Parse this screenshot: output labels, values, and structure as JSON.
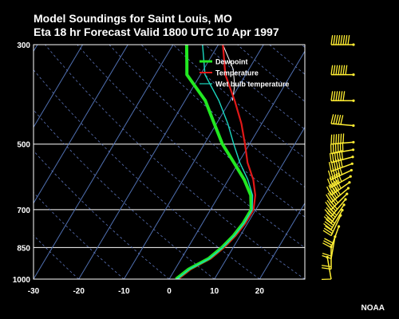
{
  "header": {
    "title": "Model Soundings for Saint Louis, MO",
    "subtitle": "Eta 18 hr Forecast Valid 1800 UTC  10 Apr 1997"
  },
  "credit": "NOAA",
  "chart_data": {
    "type": "line",
    "title": "Model Soundings for Saint Louis, MO",
    "subtitle": "Eta 18 hr Forecast Valid 1800 UTC  10 Apr 1997",
    "x_ticks": [
      "-30",
      "-20",
      "-10",
      "0",
      "10",
      "20"
    ],
    "y_ticks": [
      "300",
      "500",
      "700",
      "850",
      "1000"
    ],
    "xlim": [
      -30,
      30
    ],
    "pressure_levels_hpa": [
      1000,
      850,
      700,
      500,
      300
    ],
    "legend_position": "top-right",
    "grid": true,
    "series": [
      {
        "name": "Dewpoint",
        "color": "#22e822",
        "points": [
          {
            "p": 1000,
            "t": 1.5
          },
          {
            "p": 950,
            "t": 3
          },
          {
            "p": 900,
            "t": 6
          },
          {
            "p": 850,
            "t": 7.5
          },
          {
            "p": 800,
            "t": 8.5
          },
          {
            "p": 750,
            "t": 9
          },
          {
            "p": 700,
            "t": 9
          },
          {
            "p": 650,
            "t": 7
          },
          {
            "p": 600,
            "t": 3.5
          },
          {
            "p": 550,
            "t": -1
          },
          {
            "p": 500,
            "t": -6
          },
          {
            "p": 450,
            "t": -10.5
          },
          {
            "p": 400,
            "t": -15.5
          },
          {
            "p": 350,
            "t": -23
          },
          {
            "p": 330,
            "t": -24.5
          },
          {
            "p": 300,
            "t": -27
          }
        ]
      },
      {
        "name": "Temperature",
        "color": "#e01818",
        "points": [
          {
            "p": 1000,
            "t": 2
          },
          {
            "p": 950,
            "t": 3.5
          },
          {
            "p": 900,
            "t": 6.5
          },
          {
            "p": 850,
            "t": 8
          },
          {
            "p": 800,
            "t": 9
          },
          {
            "p": 750,
            "t": 9.5
          },
          {
            "p": 700,
            "t": 9.5
          },
          {
            "p": 650,
            "t": 8
          },
          {
            "p": 600,
            "t": 5.5
          },
          {
            "p": 550,
            "t": 2
          },
          {
            "p": 500,
            "t": -1
          },
          {
            "p": 450,
            "t": -4.5
          },
          {
            "p": 400,
            "t": -9
          },
          {
            "p": 350,
            "t": -14.5
          },
          {
            "p": 300,
            "t": -19
          }
        ]
      },
      {
        "name": "Wet bulb temperature",
        "color": "#1ad8c0",
        "points": [
          {
            "p": 1000,
            "t": 1.7
          },
          {
            "p": 950,
            "t": 3.2
          },
          {
            "p": 900,
            "t": 6.2
          },
          {
            "p": 850,
            "t": 7.7
          },
          {
            "p": 800,
            "t": 8.7
          },
          {
            "p": 750,
            "t": 9.2
          },
          {
            "p": 700,
            "t": 9.2
          },
          {
            "p": 650,
            "t": 7.4
          },
          {
            "p": 600,
            "t": 4.3
          },
          {
            "p": 550,
            "t": 0.3
          },
          {
            "p": 500,
            "t": -3.5
          },
          {
            "p": 450,
            "t": -7.5
          },
          {
            "p": 400,
            "t": -12.5
          },
          {
            "p": 350,
            "t": -19
          },
          {
            "p": 300,
            "t": -23.5
          }
        ]
      }
    ],
    "environment_line": {
      "color": "#ffffff",
      "points": [
        {
          "p": 400,
          "t": -9.5
        },
        {
          "p": 370,
          "t": -11
        },
        {
          "p": 340,
          "t": -13.5
        },
        {
          "p": 300,
          "t": -19
        }
      ]
    },
    "wind_barbs": {
      "color": "#ffee33",
      "levels": [
        {
          "p": 300,
          "speed_kt": 75,
          "dir_deg": 270
        },
        {
          "p": 350,
          "speed_kt": 70,
          "dir_deg": 270
        },
        {
          "p": 400,
          "speed_kt": 60,
          "dir_deg": 270
        },
        {
          "p": 450,
          "speed_kt": 45,
          "dir_deg": 275
        },
        {
          "p": 500,
          "speed_kt": 55,
          "dir_deg": 265
        },
        {
          "p": 525,
          "speed_kt": 60,
          "dir_deg": 260
        },
        {
          "p": 550,
          "speed_kt": 60,
          "dir_deg": 255
        },
        {
          "p": 575,
          "speed_kt": 60,
          "dir_deg": 250
        },
        {
          "p": 600,
          "speed_kt": 60,
          "dir_deg": 245
        },
        {
          "p": 625,
          "speed_kt": 55,
          "dir_deg": 240
        },
        {
          "p": 650,
          "speed_kt": 55,
          "dir_deg": 235
        },
        {
          "p": 675,
          "speed_kt": 55,
          "dir_deg": 230
        },
        {
          "p": 700,
          "speed_kt": 50,
          "dir_deg": 225
        },
        {
          "p": 725,
          "speed_kt": 50,
          "dir_deg": 220
        },
        {
          "p": 750,
          "speed_kt": 45,
          "dir_deg": 215
        },
        {
          "p": 775,
          "speed_kt": 40,
          "dir_deg": 210
        },
        {
          "p": 800,
          "speed_kt": 30,
          "dir_deg": 205
        },
        {
          "p": 850,
          "speed_kt": 25,
          "dir_deg": 200
        },
        {
          "p": 900,
          "speed_kt": 20,
          "dir_deg": 190
        },
        {
          "p": 950,
          "speed_kt": 15,
          "dir_deg": 180
        },
        {
          "p": 1000,
          "speed_kt": 10,
          "dir_deg": 170
        }
      ]
    }
  }
}
